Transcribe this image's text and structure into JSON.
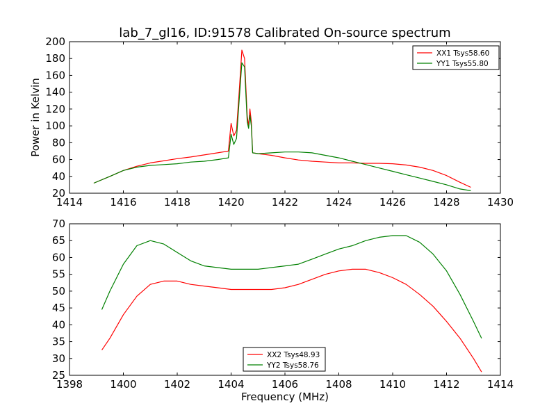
{
  "chart_data": [
    {
      "type": "line",
      "title": "lab_7_gl16, ID:91578 Calibrated On-source spectrum",
      "xlabel": "",
      "ylabel": "Power in Kelvin",
      "xlim": [
        1414,
        1430
      ],
      "ylim": [
        20,
        200
      ],
      "xticks": [
        "1414",
        "1416",
        "1418",
        "1420",
        "1422",
        "1424",
        "1426",
        "1428",
        "1430"
      ],
      "yticks": [
        "20",
        "40",
        "60",
        "80",
        "100",
        "120",
        "140",
        "160",
        "180",
        "200"
      ],
      "legend_position": "top-right",
      "series": [
        {
          "name": "XX1 Tsys58.60",
          "color": "#ff0000",
          "x": [
            1414.9,
            1415.5,
            1416.0,
            1416.5,
            1417.0,
            1417.5,
            1418.0,
            1418.5,
            1419.0,
            1419.5,
            1419.9,
            1420.0,
            1420.1,
            1420.2,
            1420.3,
            1420.4,
            1420.5,
            1420.6,
            1420.65,
            1420.7,
            1420.75,
            1420.8,
            1421.0,
            1421.5,
            1422.0,
            1422.5,
            1423.0,
            1423.5,
            1424.0,
            1424.5,
            1425.0,
            1425.5,
            1426.0,
            1426.5,
            1427.0,
            1427.5,
            1428.0,
            1428.5,
            1428.9
          ],
          "y": [
            32,
            40,
            47,
            52,
            56,
            58.5,
            61,
            63,
            65.5,
            68,
            70,
            103,
            88,
            95,
            140,
            190,
            180,
            112,
            100,
            120,
            105,
            68,
            67,
            65,
            62,
            59.5,
            58,
            57,
            56,
            56,
            55.5,
            55.5,
            55,
            53.5,
            51,
            47,
            41,
            33,
            27
          ]
        },
        {
          "name": "YY1 Tsys55.80",
          "color": "#008000",
          "x": [
            1414.9,
            1415.5,
            1416.0,
            1416.5,
            1417.0,
            1417.5,
            1418.0,
            1418.5,
            1419.0,
            1419.5,
            1419.9,
            1420.0,
            1420.1,
            1420.2,
            1420.3,
            1420.4,
            1420.5,
            1420.6,
            1420.65,
            1420.7,
            1420.75,
            1420.8,
            1421.0,
            1421.5,
            1422.0,
            1422.5,
            1423.0,
            1423.5,
            1424.0,
            1424.5,
            1425.0,
            1425.5,
            1426.0,
            1426.5,
            1427.0,
            1427.5,
            1428.0,
            1428.5,
            1428.9
          ],
          "y": [
            32,
            40,
            47,
            51,
            53,
            54,
            55,
            57,
            58,
            60,
            62,
            90,
            78,
            85,
            130,
            175,
            170,
            105,
            97,
            113,
            100,
            68,
            67,
            68,
            69,
            69,
            68,
            65,
            62,
            58,
            54,
            50,
            46,
            42,
            38,
            34,
            30,
            25,
            23
          ]
        }
      ]
    },
    {
      "type": "line",
      "title": "",
      "xlabel": "Frequency (MHz)",
      "ylabel": "",
      "xlim": [
        1398,
        1414
      ],
      "ylim": [
        25,
        70
      ],
      "xticks": [
        "1398",
        "1400",
        "1402",
        "1404",
        "1406",
        "1408",
        "1410",
        "1412",
        "1414"
      ],
      "yticks": [
        "25",
        "30",
        "35",
        "40",
        "45",
        "50",
        "55",
        "60",
        "65",
        "70"
      ],
      "legend_position": "bottom-center",
      "series": [
        {
          "name": "XX2 Tsys48.93",
          "color": "#ff0000",
          "x": [
            1399.2,
            1399.5,
            1400.0,
            1400.5,
            1401.0,
            1401.5,
            1402.0,
            1402.5,
            1403.0,
            1403.5,
            1404.0,
            1404.5,
            1405.0,
            1405.5,
            1406.0,
            1406.5,
            1407.0,
            1407.5,
            1408.0,
            1408.5,
            1409.0,
            1409.5,
            1410.0,
            1410.5,
            1411.0,
            1411.5,
            1412.0,
            1412.5,
            1413.0,
            1413.3
          ],
          "y": [
            32.5,
            36,
            43,
            48.5,
            52,
            53,
            53,
            52,
            51.5,
            51,
            50.5,
            50.5,
            50.5,
            50.5,
            51,
            52,
            53.5,
            55,
            56,
            56.5,
            56.5,
            55.5,
            54,
            52,
            49,
            45.5,
            41,
            36,
            30,
            26
          ]
        },
        {
          "name": "YY2 Tsys58.76",
          "color": "#008000",
          "x": [
            1399.2,
            1399.5,
            1400.0,
            1400.5,
            1401.0,
            1401.5,
            1402.0,
            1402.5,
            1403.0,
            1403.5,
            1404.0,
            1404.5,
            1405.0,
            1405.5,
            1406.0,
            1406.5,
            1407.0,
            1407.5,
            1408.0,
            1408.5,
            1409.0,
            1409.5,
            1410.0,
            1410.5,
            1411.0,
            1411.5,
            1412.0,
            1412.5,
            1413.0,
            1413.3
          ],
          "y": [
            44.5,
            50,
            58,
            63.5,
            65,
            64,
            61.5,
            59,
            57.5,
            57,
            56.5,
            56.5,
            56.5,
            57,
            57.5,
            58,
            59.5,
            61,
            62.5,
            63.5,
            65,
            66,
            66.5,
            66.5,
            64.5,
            61,
            56,
            49,
            41,
            36
          ]
        }
      ]
    }
  ]
}
